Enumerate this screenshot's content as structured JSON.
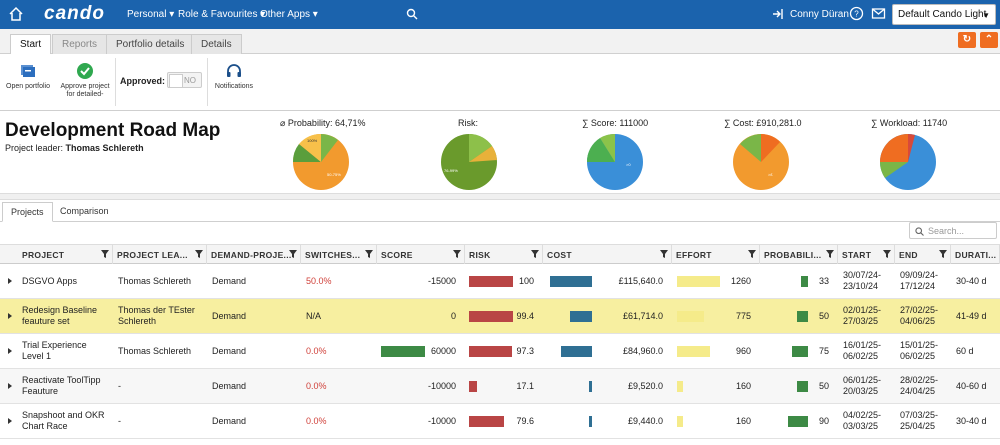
{
  "app": {
    "logo": "cando",
    "menus": [
      "Personal",
      "Role & Favourites",
      "Other Apps"
    ],
    "user": "Conny Düran",
    "theme": "Default Cando Light"
  },
  "tabs": [
    "Start",
    "Reports",
    "Portfolio details",
    "Details"
  ],
  "ribbon": {
    "open_portfolio": "Open portfolio",
    "approve": "Approve project for detailed-",
    "approved_label": "Approved:",
    "approved_value": "NO",
    "notifications": "Notifications"
  },
  "summary": {
    "title": "Development Road Map",
    "leader_label": "Project leader:",
    "leader": "Thomas Schlereth",
    "kpis": [
      {
        "label": "⌀ Probability: 64,71%"
      },
      {
        "label": "Risk:"
      },
      {
        "label": "∑ Score: 111000"
      },
      {
        "label": "∑ Cost: £910,281.0"
      },
      {
        "label": "∑ Workload: 11740"
      }
    ]
  },
  "subtabs": [
    "Projects",
    "Comparison"
  ],
  "grid": {
    "search_placeholder": "Search...",
    "columns": [
      "PROJECT",
      "PROJECT LEA...",
      "DEMAND-PROJE...",
      "SWITCHES...",
      "SCORE",
      "RISK",
      "COST",
      "EFFORT",
      "PROBABILI...",
      "START",
      "END",
      "DURATI..."
    ],
    "rows": [
      {
        "project": [
          "DSGVO Apps"
        ],
        "leader": [
          "Thomas Schlereth"
        ],
        "demand": "Demand",
        "switch": "50.0%",
        "score": "-15000",
        "risk": "100",
        "cost": "£115,640.0",
        "effort": "1260",
        "prob": "33",
        "start": [
          "30/07/24-",
          "23/10/24"
        ],
        "end": [
          "09/09/24-",
          "17/12/24"
        ],
        "dur": "30-40 d"
      },
      {
        "project": [
          "Redesign Baseline",
          "feauture set"
        ],
        "leader": [
          "Thomas der TEster",
          "Schlereth"
        ],
        "demand": "Demand",
        "switch": "N/A",
        "score": "0",
        "risk": "99.4",
        "cost": "£61,714.0",
        "effort": "775",
        "prob": "50",
        "start": [
          "02/01/25-",
          "27/03/25"
        ],
        "end": [
          "27/02/25-",
          "04/06/25"
        ],
        "dur": "41-49 d"
      },
      {
        "project": [
          "Trial Experience",
          "Level 1"
        ],
        "leader": [
          "Thomas Schlereth"
        ],
        "demand": "Demand",
        "switch": "0.0%",
        "score": "60000",
        "risk": "97.3",
        "cost": "£84,960.0",
        "effort": "960",
        "prob": "75",
        "start": [
          "16/01/25-",
          "06/02/25"
        ],
        "end": [
          "15/01/25-",
          "06/02/25"
        ],
        "dur": "60 d"
      },
      {
        "project": [
          "Reactivate ToolTipp",
          "Feauture"
        ],
        "leader": [
          "-"
        ],
        "demand": "Demand",
        "switch": "0.0%",
        "score": "-10000",
        "risk": "17.1",
        "cost": "£9,520.0",
        "effort": "160",
        "prob": "50",
        "start": [
          "06/01/25-",
          "20/03/25"
        ],
        "end": [
          "28/02/25-",
          "24/04/25"
        ],
        "dur": "40-60 d"
      },
      {
        "project": [
          "Snapshoot and OKR",
          "Chart Race"
        ],
        "leader": [
          "-"
        ],
        "demand": "Demand",
        "switch": "0.0%",
        "score": "-10000",
        "risk": "79.6",
        "cost": "£9,440.0",
        "effort": "160",
        "prob": "90",
        "start": [
          "04/02/25-",
          "03/03/25"
        ],
        "end": [
          "07/03/25-",
          "25/04/25"
        ],
        "dur": "30-40 d"
      }
    ],
    "bars": [
      {
        "score": 0,
        "risk": 1.0,
        "cost": 1.0,
        "effort": 1.0,
        "prob": 0.33
      },
      {
        "score": 0,
        "risk": 0.994,
        "cost": 0.53,
        "effort": 0.62,
        "prob": 0.5
      },
      {
        "score": 1.0,
        "risk": 0.973,
        "cost": 0.73,
        "effort": 0.76,
        "prob": 0.75
      },
      {
        "score": 0,
        "risk": 0.171,
        "cost": 0.08,
        "effort": 0.13,
        "prob": 0.5
      },
      {
        "score": 0,
        "risk": 0.796,
        "cost": 0.08,
        "effort": 0.13,
        "prob": 0.9
      }
    ]
  },
  "colors": {
    "risk": "#b94545",
    "cost": "#2f6f93",
    "effort": "#f5eb8a",
    "prob": "#3d8a45",
    "score": "#3d8a45",
    "brand": "#1b63ad",
    "accent": "#ef6d21"
  }
}
